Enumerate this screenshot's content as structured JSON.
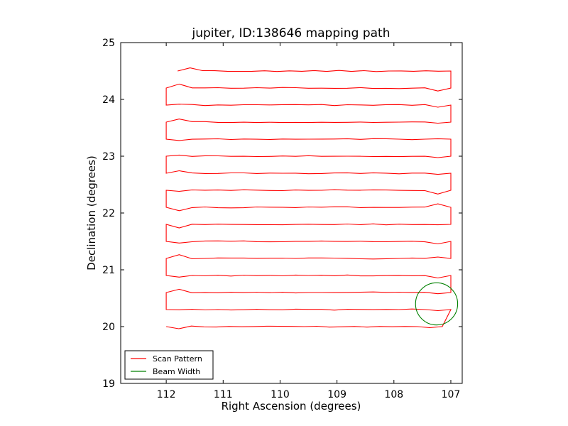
{
  "chart_data": {
    "type": "line",
    "title": "jupiter, ID:138646 mapping path",
    "xlabel": "Right Ascension (degrees)",
    "ylabel": "Declination (degrees)",
    "xlim": [
      112.8,
      106.8
    ],
    "ylim": [
      19,
      25
    ],
    "x_reversed": true,
    "xticks": [
      112,
      111,
      110,
      109,
      108,
      107
    ],
    "yticks": [
      19,
      20,
      21,
      22,
      23,
      24,
      25
    ],
    "grid": false,
    "legend_position": "lower-left",
    "series": [
      {
        "name": "Scan Pattern",
        "type": "line",
        "color": "#ff0000",
        "rows": [
          {
            "dec": 20.0,
            "raw_start": 112.0,
            "dir": "right",
            "raw_end": 107.15
          },
          {
            "dec": 20.3,
            "raw_start": 112.0,
            "dir": "left",
            "raw_end": 107.0
          },
          {
            "dec": 20.6,
            "raw_start": 112.0,
            "dir": "right",
            "raw_end": 107.0
          },
          {
            "dec": 20.9,
            "raw_start": 112.0,
            "dir": "left",
            "raw_end": 107.0
          },
          {
            "dec": 21.2,
            "raw_start": 112.0,
            "dir": "right",
            "raw_end": 107.0
          },
          {
            "dec": 21.5,
            "raw_start": 112.0,
            "dir": "left",
            "raw_end": 107.0
          },
          {
            "dec": 21.8,
            "raw_start": 112.0,
            "dir": "right",
            "raw_end": 107.0
          },
          {
            "dec": 22.1,
            "raw_start": 112.0,
            "dir": "left",
            "raw_end": 107.0
          },
          {
            "dec": 22.4,
            "raw_start": 112.0,
            "dir": "right",
            "raw_end": 107.0
          },
          {
            "dec": 22.7,
            "raw_start": 112.0,
            "dir": "left",
            "raw_end": 107.0
          },
          {
            "dec": 23.0,
            "raw_start": 112.0,
            "dir": "right",
            "raw_end": 107.0
          },
          {
            "dec": 23.3,
            "raw_start": 112.0,
            "dir": "left",
            "raw_end": 107.0
          },
          {
            "dec": 23.6,
            "raw_start": 112.0,
            "dir": "right",
            "raw_end": 107.0
          },
          {
            "dec": 23.9,
            "raw_start": 112.0,
            "dir": "left",
            "raw_end": 107.0
          },
          {
            "dec": 24.2,
            "raw_start": 112.0,
            "dir": "right",
            "raw_end": 107.0
          },
          {
            "dec": 24.5,
            "raw_start": 111.8,
            "dir": "left",
            "raw_end": 107.0
          }
        ]
      },
      {
        "name": "Beam Width",
        "type": "circle",
        "color": "#008000",
        "center": [
          107.25,
          20.4
        ],
        "radius_deg": 0.37
      }
    ]
  }
}
